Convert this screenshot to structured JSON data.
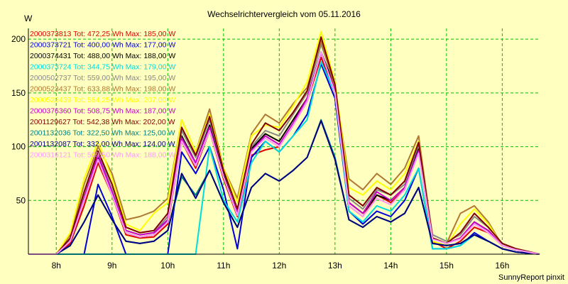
{
  "chart_data": {
    "type": "line",
    "title": "Wechselrichtervergleich vom 05.11.2016",
    "ylabel": "W",
    "xlabel": "",
    "footer": "SunnyReport pinxit",
    "ylim": [
      0,
      210
    ],
    "yticks": [
      50,
      100,
      150,
      200
    ],
    "xticks": [
      "8h",
      "9h",
      "10h",
      "11h",
      "12h",
      "13h",
      "14h",
      "15h",
      "16h"
    ],
    "xtick_hours": [
      8,
      9,
      10,
      11,
      12,
      13,
      14,
      15,
      16
    ],
    "xlim": [
      7.5,
      16.67
    ],
    "grid": true,
    "legend_position": "top-left",
    "x": [
      7.5,
      8.0,
      8.25,
      8.5,
      8.75,
      9.0,
      9.25,
      9.5,
      9.75,
      10.0,
      10.25,
      10.5,
      10.75,
      11.0,
      11.25,
      11.5,
      11.75,
      12.0,
      12.25,
      12.5,
      12.75,
      13.0,
      13.25,
      13.5,
      13.75,
      14.0,
      14.25,
      14.5,
      14.75,
      15.0,
      15.25,
      15.5,
      15.75,
      16.0,
      16.25,
      16.67
    ],
    "series": [
      {
        "name": "2000373813 Tot: 472,25 Wh Max: 185,00 W",
        "color": "#e00000",
        "values": [
          0,
          0,
          10,
          45,
          85,
          55,
          18,
          15,
          16,
          28,
          105,
          80,
          115,
          70,
          35,
          92,
          97,
          100,
          120,
          142,
          183,
          150,
          45,
          35,
          55,
          48,
          60,
          95,
          12,
          5,
          12,
          25,
          20,
          8,
          4,
          0
        ]
      },
      {
        "name": "2000373721 Tot: 400,00 Wh Max: 177,00 W",
        "color": "#0000dd",
        "values": [
          0,
          0,
          0,
          0,
          65,
          35,
          0,
          0,
          0,
          0,
          95,
          75,
          100,
          60,
          5,
          90,
          105,
          95,
          110,
          130,
          177,
          145,
          40,
          28,
          40,
          35,
          50,
          80,
          5,
          5,
          8,
          20,
          12,
          5,
          2,
          0
        ]
      },
      {
        "name": "2000374431 Tot: 488,00 Wh Max: 188,00 W",
        "color": "#000000",
        "values": [
          0,
          0,
          12,
          50,
          90,
          55,
          20,
          16,
          18,
          32,
          110,
          85,
          120,
          75,
          38,
          98,
          112,
          105,
          125,
          145,
          188,
          155,
          48,
          38,
          55,
          50,
          62,
          98,
          15,
          10,
          15,
          30,
          22,
          8,
          4,
          0
        ]
      },
      {
        "name": "2000373724 Tot: 344,75 Wh Max: 179,00 W",
        "color": "#00dddd",
        "values": [
          0,
          0,
          0,
          0,
          0,
          0,
          0,
          0,
          0,
          0,
          0,
          0,
          100,
          50,
          30,
          85,
          105,
          95,
          110,
          125,
          179,
          150,
          40,
          30,
          45,
          40,
          55,
          80,
          5,
          5,
          8,
          18,
          12,
          5,
          2,
          0
        ]
      },
      {
        "name": "2000502737 Tot: 559,00 Wh Max: 195,00 W",
        "color": "#888888",
        "values": [
          0,
          0,
          14,
          55,
          95,
          60,
          22,
          18,
          20,
          35,
          115,
          90,
          125,
          78,
          40,
          100,
          115,
          110,
          130,
          150,
          195,
          160,
          52,
          42,
          60,
          55,
          65,
          102,
          18,
          12,
          18,
          35,
          25,
          10,
          5,
          0
        ]
      },
      {
        "name": "2000523437 Tot: 633,88 Wh Max: 198,00 W",
        "color": "#b07830",
        "values": [
          0,
          0,
          18,
          65,
          100,
          75,
          32,
          35,
          40,
          52,
          125,
          95,
          135,
          80,
          52,
          112,
          130,
          122,
          140,
          155,
          198,
          155,
          70,
          60,
          75,
          65,
          80,
          110,
          15,
          10,
          38,
          45,
          30,
          8,
          4,
          0
        ]
      },
      {
        "name": "2000523439 Tot: 584,25 Wh Max: 207,00 W",
        "color": "#ffff00",
        "values": [
          0,
          0,
          20,
          70,
          105,
          70,
          28,
          22,
          38,
          48,
          125,
          95,
          130,
          80,
          48,
          110,
          120,
          118,
          138,
          160,
          207,
          160,
          62,
          55,
          68,
          60,
          75,
          105,
          12,
          8,
          28,
          42,
          28,
          8,
          4,
          0
        ]
      },
      {
        "name": "2000376360 Tot: 508,75 Wh Max: 187,00 W",
        "color": "#cc00cc",
        "values": [
          0,
          0,
          12,
          52,
          92,
          58,
          22,
          18,
          20,
          32,
          108,
          85,
          118,
          72,
          38,
          96,
          110,
          102,
          122,
          145,
          187,
          152,
          48,
          38,
          58,
          50,
          62,
          96,
          15,
          10,
          15,
          30,
          22,
          8,
          4,
          0
        ]
      },
      {
        "name": "2001129627 Tot: 542,38 Wh Max: 202,00 W",
        "color": "#800000",
        "values": [
          0,
          0,
          15,
          58,
          96,
          65,
          25,
          20,
          22,
          38,
          118,
          92,
          128,
          78,
          42,
          102,
          122,
          115,
          132,
          152,
          202,
          158,
          55,
          45,
          62,
          55,
          68,
          104,
          15,
          10,
          20,
          38,
          25,
          10,
          5,
          0
        ]
      },
      {
        "name": "2001132036 Tot: 322,50 Wh Max: 125,00 W",
        "color": "#008080",
        "values": [
          0,
          0,
          8,
          30,
          55,
          32,
          12,
          10,
          12,
          22,
          72,
          55,
          78,
          48,
          25,
          62,
          75,
          68,
          78,
          90,
          125,
          90,
          32,
          25,
          35,
          30,
          38,
          62,
          10,
          8,
          10,
          18,
          12,
          5,
          2,
          0
        ]
      },
      {
        "name": "2001132087 Tot: 332,00 Wh Max: 124,00 W",
        "color": "#000080",
        "values": [
          0,
          0,
          8,
          30,
          55,
          32,
          12,
          10,
          12,
          22,
          75,
          52,
          78,
          48,
          25,
          62,
          75,
          68,
          78,
          90,
          124,
          88,
          32,
          25,
          35,
          30,
          38,
          62,
          10,
          8,
          10,
          18,
          12,
          5,
          2,
          0
        ]
      },
      {
        "name": "2000316121 Tot: 509,50 Wh Max: 188,00 W",
        "color": "#ff99ff",
        "values": [
          0,
          0,
          12,
          50,
          88,
          55,
          20,
          16,
          18,
          30,
          105,
          82,
          115,
          72,
          36,
          95,
          108,
          100,
          120,
          142,
          188,
          150,
          45,
          35,
          52,
          46,
          60,
          94,
          14,
          10,
          14,
          28,
          20,
          8,
          4,
          0
        ]
      }
    ]
  }
}
